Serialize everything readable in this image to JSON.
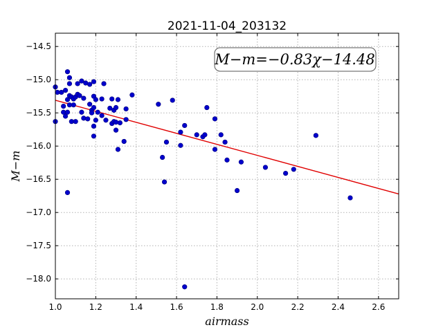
{
  "chart_data": {
    "type": "scatter",
    "title": "2021-11-04_203132",
    "xlabel": "airmass",
    "ylabel": "M−m",
    "xlim": [
      1.0,
      2.7
    ],
    "ylim": [
      -18.3,
      -14.3
    ],
    "xticks": [
      1.0,
      1.2,
      1.4,
      1.6,
      1.8,
      2.0,
      2.2,
      2.4,
      2.6
    ],
    "xtick_labels": [
      "1.0",
      "1.2",
      "1.4",
      "1.6",
      "1.8",
      "2.0",
      "2.2",
      "2.4",
      "2.6"
    ],
    "yticks": [
      -18.0,
      -17.5,
      -17.0,
      -16.5,
      -16.0,
      -15.5,
      -15.0,
      -14.5
    ],
    "ytick_labels": [
      "−18.0",
      "−17.5",
      "−17.0",
      "−16.5",
      "−16.0",
      "−15.5",
      "−15.0",
      "−14.5"
    ],
    "grid": true,
    "annotation": "M−m=−0.83χ−14.48",
    "fit": {
      "slope": -0.83,
      "intercept": -14.48
    },
    "colors": {
      "points": "#0000cc",
      "fit": "#e00000"
    },
    "points": [
      {
        "x": 1.0,
        "y": -15.11
      },
      {
        "x": 1.0,
        "y": -15.63
      },
      {
        "x": 1.01,
        "y": -15.19
      },
      {
        "x": 1.03,
        "y": -15.19
      },
      {
        "x": 1.04,
        "y": -15.4
      },
      {
        "x": 1.04,
        "y": -15.49
      },
      {
        "x": 1.05,
        "y": -15.55
      },
      {
        "x": 1.05,
        "y": -15.16
      },
      {
        "x": 1.06,
        "y": -14.88
      },
      {
        "x": 1.06,
        "y": -15.49
      },
      {
        "x": 1.06,
        "y": -15.3
      },
      {
        "x": 1.07,
        "y": -14.97
      },
      {
        "x": 1.07,
        "y": -15.06
      },
      {
        "x": 1.07,
        "y": -15.24
      },
      {
        "x": 1.07,
        "y": -15.38
      },
      {
        "x": 1.08,
        "y": -15.26
      },
      {
        "x": 1.08,
        "y": -15.63
      },
      {
        "x": 1.09,
        "y": -15.29
      },
      {
        "x": 1.09,
        "y": -15.38
      },
      {
        "x": 1.1,
        "y": -15.26
      },
      {
        "x": 1.1,
        "y": -15.63
      },
      {
        "x": 1.11,
        "y": -15.06
      },
      {
        "x": 1.11,
        "y": -15.22
      },
      {
        "x": 1.12,
        "y": -15.24
      },
      {
        "x": 1.13,
        "y": -15.02
      },
      {
        "x": 1.13,
        "y": -15.49
      },
      {
        "x": 1.14,
        "y": -15.28
      },
      {
        "x": 1.14,
        "y": -15.58
      },
      {
        "x": 1.15,
        "y": -15.05
      },
      {
        "x": 1.16,
        "y": -15.59
      },
      {
        "x": 1.17,
        "y": -15.07
      },
      {
        "x": 1.17,
        "y": -15.37
      },
      {
        "x": 1.18,
        "y": -15.46
      },
      {
        "x": 1.18,
        "y": -15.5
      },
      {
        "x": 1.19,
        "y": -15.03
      },
      {
        "x": 1.19,
        "y": -15.25
      },
      {
        "x": 1.19,
        "y": -15.42
      },
      {
        "x": 1.19,
        "y": -15.7
      },
      {
        "x": 1.19,
        "y": -15.85
      },
      {
        "x": 1.2,
        "y": -15.3
      },
      {
        "x": 1.2,
        "y": -15.61
      },
      {
        "x": 1.21,
        "y": -15.49
      },
      {
        "x": 1.23,
        "y": -15.29
      },
      {
        "x": 1.23,
        "y": -15.54
      },
      {
        "x": 1.24,
        "y": -15.06
      },
      {
        "x": 1.25,
        "y": -15.61
      },
      {
        "x": 1.27,
        "y": -15.43
      },
      {
        "x": 1.28,
        "y": -15.29
      },
      {
        "x": 1.28,
        "y": -15.66
      },
      {
        "x": 1.29,
        "y": -15.46
      },
      {
        "x": 1.29,
        "y": -15.63
      },
      {
        "x": 1.3,
        "y": -15.42
      },
      {
        "x": 1.3,
        "y": -15.64
      },
      {
        "x": 1.3,
        "y": -15.76
      },
      {
        "x": 1.31,
        "y": -15.3
      },
      {
        "x": 1.31,
        "y": -16.05
      },
      {
        "x": 1.32,
        "y": -15.65
      },
      {
        "x": 1.34,
        "y": -15.93
      },
      {
        "x": 1.35,
        "y": -15.44
      },
      {
        "x": 1.35,
        "y": -15.6
      },
      {
        "x": 1.38,
        "y": -15.23
      },
      {
        "x": 1.06,
        "y": -16.7
      },
      {
        "x": 1.51,
        "y": -15.37
      },
      {
        "x": 1.53,
        "y": -16.17
      },
      {
        "x": 1.54,
        "y": -16.54
      },
      {
        "x": 1.55,
        "y": -15.94
      },
      {
        "x": 1.58,
        "y": -15.31
      },
      {
        "x": 1.62,
        "y": -15.79
      },
      {
        "x": 1.62,
        "y": -15.99
      },
      {
        "x": 1.64,
        "y": -15.69
      },
      {
        "x": 1.64,
        "y": -18.12
      },
      {
        "x": 1.7,
        "y": -15.83
      },
      {
        "x": 1.73,
        "y": -15.86
      },
      {
        "x": 1.74,
        "y": -15.83
      },
      {
        "x": 1.75,
        "y": -15.42
      },
      {
        "x": 1.79,
        "y": -15.59
      },
      {
        "x": 1.79,
        "y": -16.05
      },
      {
        "x": 1.82,
        "y": -15.83
      },
      {
        "x": 1.84,
        "y": -15.94
      },
      {
        "x": 1.85,
        "y": -16.21
      },
      {
        "x": 1.9,
        "y": -16.67
      },
      {
        "x": 1.92,
        "y": -16.24
      },
      {
        "x": 2.04,
        "y": -16.32
      },
      {
        "x": 2.14,
        "y": -16.41
      },
      {
        "x": 2.18,
        "y": -16.35
      },
      {
        "x": 2.29,
        "y": -15.84
      },
      {
        "x": 2.46,
        "y": -16.78
      }
    ]
  }
}
